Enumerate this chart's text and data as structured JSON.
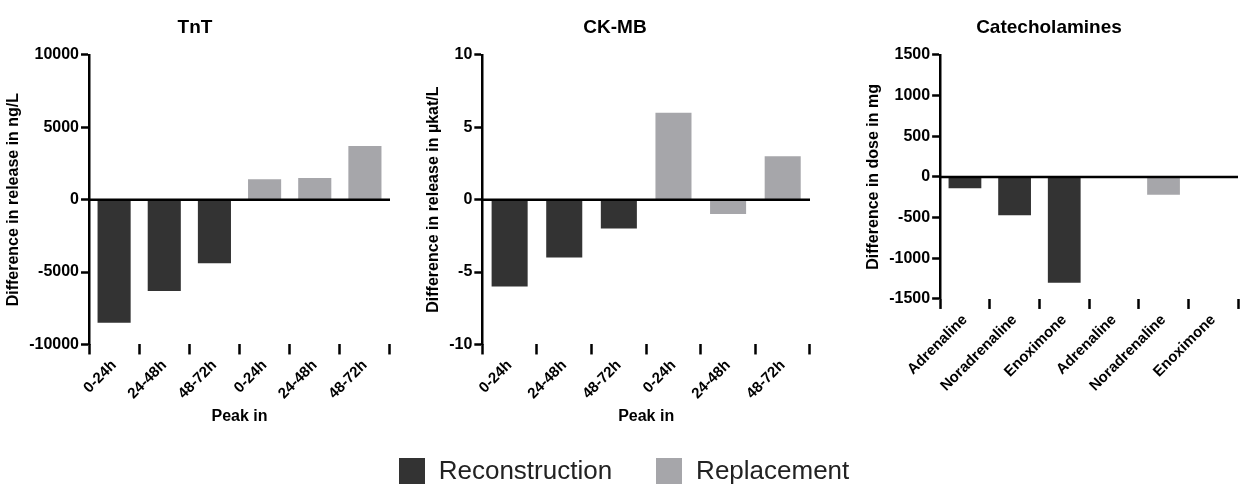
{
  "chart_data": [
    {
      "type": "bar",
      "title": "TnT",
      "xlabel": "Peak in",
      "ylabel": "Difference in release in ng/L",
      "categories": [
        "0-24h",
        "24-48h",
        "48-72h",
        "0-24h",
        "24-48h",
        "48-72h"
      ],
      "series": [
        {
          "name": "Reconstruction",
          "color": "#333333",
          "values": [
            -8500,
            -6300,
            -4400,
            null,
            null,
            null
          ]
        },
        {
          "name": "Replacement",
          "color": "#a6a6aa",
          "values": [
            null,
            null,
            null,
            1400,
            1500,
            3700
          ]
        }
      ],
      "ylim": [
        -10000,
        10000
      ],
      "yticks": [
        -10000,
        -5000,
        0,
        5000,
        10000
      ],
      "legend": "bottom"
    },
    {
      "type": "bar",
      "title": "CK-MB",
      "xlabel": "Peak in",
      "ylabel": "Difference in release in µkat/L",
      "categories": [
        "0-24h",
        "24-48h",
        "48-72h",
        "0-24h",
        "24-48h",
        "48-72h"
      ],
      "series": [
        {
          "color": "#333333",
          "values": [
            -6,
            -4,
            -2,
            null,
            null,
            null
          ]
        },
        {
          "color": "#a6a6aa",
          "values": [
            null,
            null,
            null,
            6,
            -1,
            3
          ]
        }
      ],
      "ylim": [
        -10,
        10
      ],
      "yticks": [
        -10,
        -5,
        0,
        5,
        10
      ]
    },
    {
      "type": "bar",
      "title": "Catecholamines",
      "ylabel": "Difference in dose in mg",
      "categories": [
        "Adrenaline",
        "Noradrenaline",
        "Enoximone",
        "Adrenaline",
        "Noradrenaline",
        "Enoximone"
      ],
      "series": [
        {
          "color": "#333333",
          "values": [
            -140,
            -470,
            -1300,
            null,
            null,
            null
          ]
        },
        {
          "color": "#a6a6aa",
          "values": [
            null,
            null,
            null,
            0,
            -220,
            0
          ]
        }
      ],
      "ylim": [
        -1500,
        1500
      ],
      "yticks": [
        -1500,
        -1000,
        -500,
        0,
        500,
        1000,
        1500
      ]
    }
  ]
}
